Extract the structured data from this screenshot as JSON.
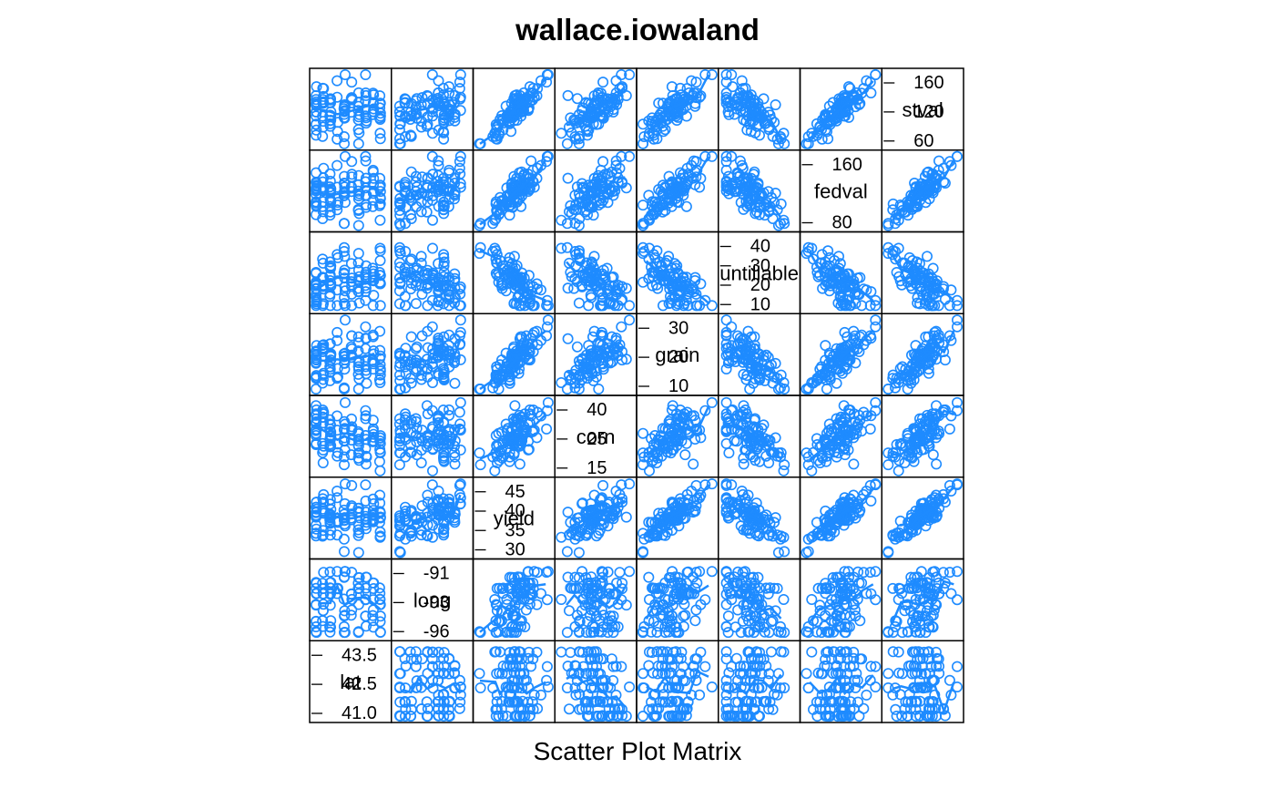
{
  "title": "wallace.iowaland",
  "xlabel": "Scatter Plot Matrix",
  "colors": {
    "points": "#1E8BFF",
    "axes": "#000000",
    "background": "#FFFFFF"
  },
  "chart_data": {
    "type": "scatter",
    "matrix": "splom",
    "variables": [
      {
        "name": "lat",
        "range": [
          40.6,
          43.5
        ],
        "ticks": [
          41.0,
          42.5,
          43.5
        ],
        "tick_labels": [
          "41.0",
          "42.5",
          "43.5"
        ]
      },
      {
        "name": "long",
        "range": [
          -96.5,
          -90.2
        ],
        "ticks": [
          -96,
          -93,
          -91
        ],
        "tick_labels": [
          "-96",
          "-93",
          "-91"
        ]
      },
      {
        "name": "yield",
        "range": [
          28,
          47
        ],
        "ticks": [
          30,
          35,
          40,
          45
        ],
        "tick_labels": [
          "30",
          "35",
          "40",
          "45"
        ]
      },
      {
        "name": "corn",
        "range": [
          12,
          47
        ],
        "ticks": [
          15,
          25,
          40
        ],
        "tick_labels": [
          "15",
          "25",
          "40"
        ]
      },
      {
        "name": "grain",
        "range": [
          7,
          35
        ],
        "ticks": [
          10,
          20,
          30
        ],
        "tick_labels": [
          "10",
          "20",
          "30"
        ]
      },
      {
        "name": "untillable",
        "range": [
          5,
          45
        ],
        "ticks": [
          10,
          20,
          30,
          40
        ],
        "tick_labels": [
          "10",
          "20",
          "30",
          "40"
        ]
      },
      {
        "name": "fedval",
        "range": [
          55,
          185
        ],
        "ticks": [
          80,
          160
        ],
        "tick_labels": [
          "80",
          "160"
        ]
      },
      {
        "name": "stval",
        "range": [
          45,
          170
        ],
        "ticks": [
          60,
          120,
          160
        ],
        "tick_labels": [
          "60",
          "120",
          "160"
        ]
      }
    ],
    "diagonal_text": [
      {
        "var": "lat",
        "lines": [
          "43.5",
          "42.5",
          "41.0"
        ]
      },
      {
        "var": "long",
        "lines": [
          "-91",
          "-93",
          "-96"
        ]
      },
      {
        "var": "yield",
        "lines": [
          "45",
          "40",
          "35",
          "30"
        ]
      },
      {
        "var": "corn",
        "lines": [
          "40",
          "25",
          "15"
        ]
      },
      {
        "var": "grain",
        "lines": [
          "30",
          "20",
          "10"
        ]
      },
      {
        "var": "untillable",
        "lines": [
          "40",
          "30",
          "20",
          "10"
        ]
      },
      {
        "var": "fedval",
        "lines": [
          "160",
          "80"
        ]
      },
      {
        "var": "stval",
        "lines": [
          "160",
          "120",
          "60"
        ]
      }
    ],
    "n_points": 99,
    "grid": false,
    "smooth_lines": true
  }
}
